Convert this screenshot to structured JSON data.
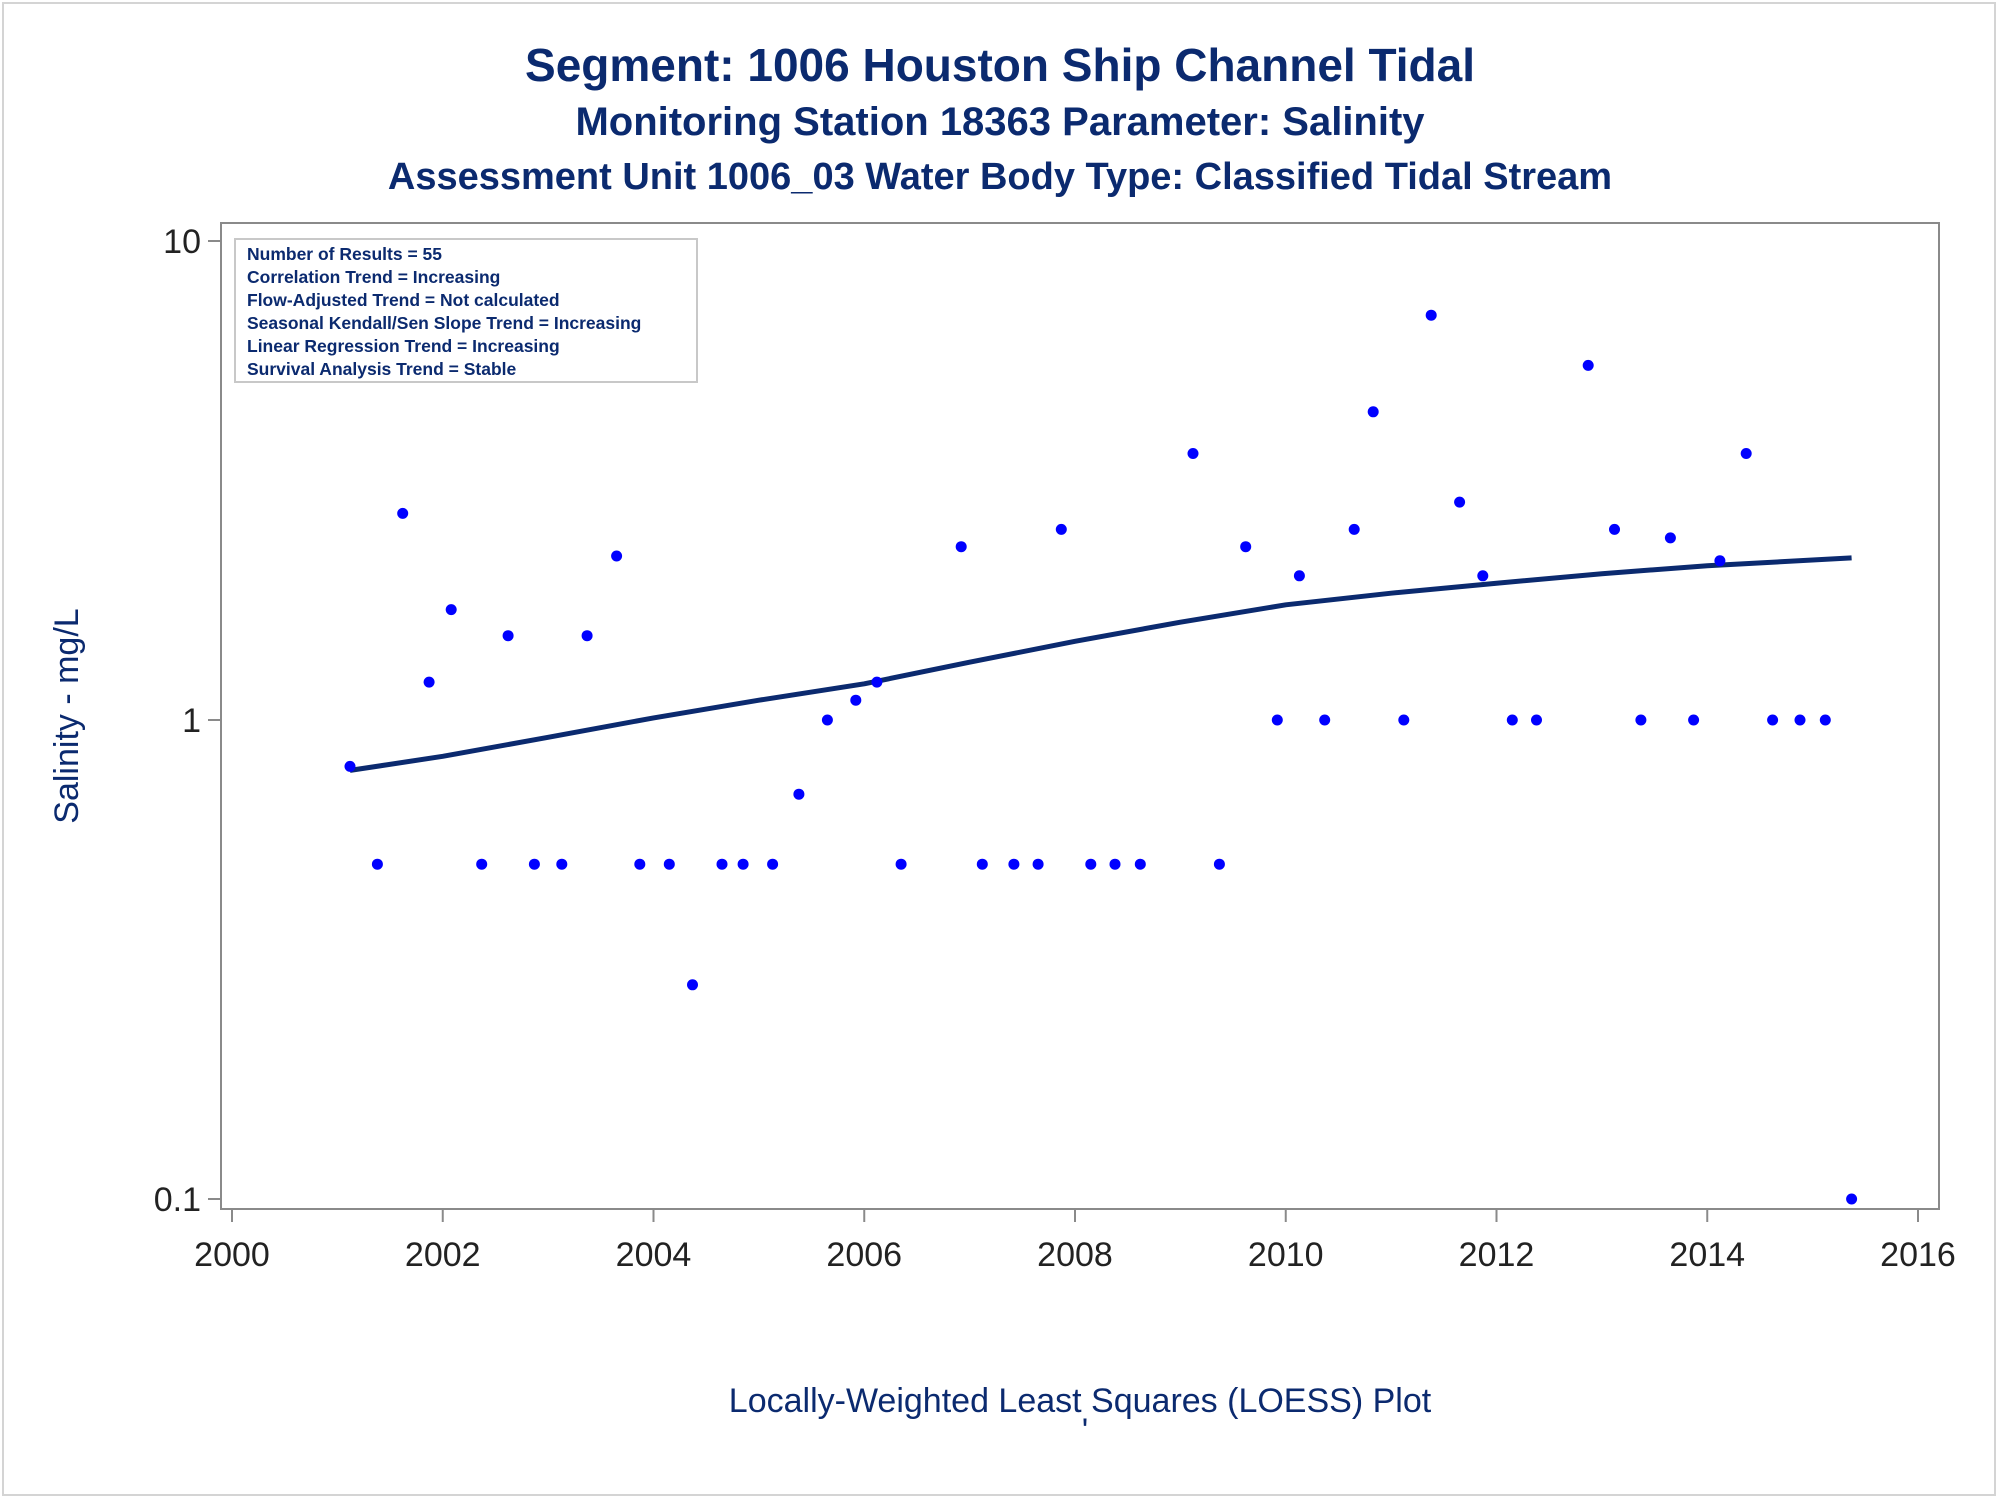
{
  "titles": {
    "line1": "Segment: 1006  Houston Ship Channel Tidal",
    "line2": "Monitoring Station 18363 Parameter: Salinity",
    "line3": "Assessment Unit 1006_03   Water Body Type: Classified Tidal Stream"
  },
  "footnote_mark": "'",
  "chart_data": {
    "type": "scatter",
    "xlabel": "Locally-Weighted Least Squares (LOESS) Plot",
    "ylabel": "Salinity - mg/L",
    "y_scale": "log",
    "xlim": [
      2000,
      2016
    ],
    "ylim": [
      0.1,
      10
    ],
    "x_ticks": [
      "2000",
      "2002",
      "2004",
      "2006",
      "2008",
      "2010",
      "2012",
      "2014",
      "2016"
    ],
    "y_ticks": [
      "0.1",
      "1",
      "10"
    ],
    "grid": false,
    "colors": {
      "points": "#0000ff",
      "loess": "#0b2a6f",
      "text": "#0b2a6f"
    },
    "stats_box": {
      "placement": "top-left",
      "lines": [
        "Number of Results = 55",
        "Correlation Trend = Increasing",
        "Flow-Adjusted Trend = Not calculated",
        "Seasonal Kendall/Sen Slope Trend = Increasing",
        "Linear Regression Trend = Increasing",
        "Survival Analysis Trend = Stable"
      ]
    },
    "series": [
      {
        "kind": "observations",
        "points": [
          [
            2001.12,
            0.8
          ],
          [
            2001.38,
            0.5
          ],
          [
            2001.62,
            2.7
          ],
          [
            2001.87,
            1.2
          ],
          [
            2002.08,
            1.7
          ],
          [
            2002.37,
            0.5
          ],
          [
            2002.62,
            1.5
          ],
          [
            2002.87,
            0.5
          ],
          [
            2003.13,
            0.5
          ],
          [
            2003.37,
            1.5
          ],
          [
            2003.65,
            2.2
          ],
          [
            2003.87,
            0.5
          ],
          [
            2004.15,
            0.5
          ],
          [
            2004.37,
            0.28
          ],
          [
            2004.65,
            0.5
          ],
          [
            2004.85,
            0.5
          ],
          [
            2005.13,
            0.5
          ],
          [
            2005.38,
            0.7
          ],
          [
            2005.65,
            1.0
          ],
          [
            2005.92,
            1.1
          ],
          [
            2006.12,
            1.2
          ],
          [
            2006.35,
            0.5
          ],
          [
            2006.92,
            2.3
          ],
          [
            2007.12,
            0.5
          ],
          [
            2007.42,
            0.5
          ],
          [
            2007.65,
            0.5
          ],
          [
            2007.87,
            2.5
          ],
          [
            2008.15,
            0.5
          ],
          [
            2008.38,
            0.5
          ],
          [
            2008.62,
            0.5
          ],
          [
            2009.12,
            3.6
          ],
          [
            2009.37,
            0.5
          ],
          [
            2009.62,
            2.3
          ],
          [
            2009.92,
            1.0
          ],
          [
            2010.13,
            2.0
          ],
          [
            2010.37,
            1.0
          ],
          [
            2010.65,
            2.5
          ],
          [
            2010.83,
            4.4
          ],
          [
            2011.12,
            1.0
          ],
          [
            2011.38,
            7.0
          ],
          [
            2011.65,
            2.85
          ],
          [
            2011.87,
            2.0
          ],
          [
            2012.15,
            1.0
          ],
          [
            2012.38,
            1.0
          ],
          [
            2012.87,
            5.5
          ],
          [
            2013.12,
            2.5
          ],
          [
            2013.37,
            1.0
          ],
          [
            2013.65,
            2.4
          ],
          [
            2013.87,
            1.0
          ],
          [
            2014.12,
            2.15
          ],
          [
            2014.37,
            3.6
          ],
          [
            2014.62,
            1.0
          ],
          [
            2014.88,
            1.0
          ],
          [
            2015.12,
            1.0
          ],
          [
            2015.37,
            0.1
          ]
        ]
      },
      {
        "kind": "loess",
        "x": [
          2001.12,
          2002.0,
          2003.0,
          2004.0,
          2005.0,
          2006.0,
          2007.0,
          2008.0,
          2009.0,
          2010.0,
          2011.0,
          2012.0,
          2013.0,
          2014.0,
          2015.37
        ],
        "y": [
          0.785,
          0.84,
          0.92,
          1.01,
          1.1,
          1.19,
          1.32,
          1.46,
          1.6,
          1.74,
          1.84,
          1.93,
          2.02,
          2.1,
          2.18
        ]
      }
    ]
  }
}
